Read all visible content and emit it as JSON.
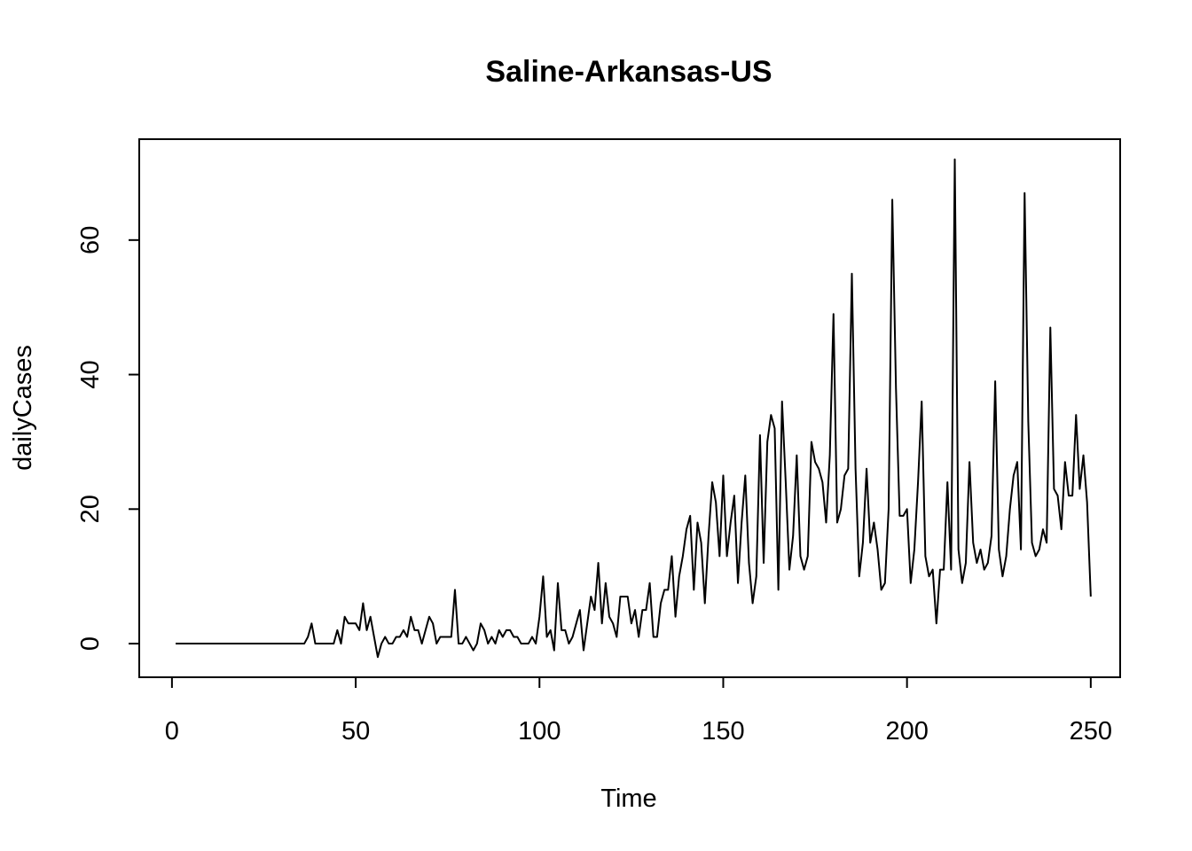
{
  "chart_data": {
    "type": "line",
    "title": "Saline-Arkansas-US",
    "xlabel": "Time",
    "ylabel": "dailyCases",
    "xlim": [
      -8.9,
      258
    ],
    "ylim": [
      -5,
      75
    ],
    "x_ticks": [
      0,
      50,
      100,
      150,
      200,
      250
    ],
    "y_ticks": [
      0,
      20,
      40,
      60
    ],
    "grid": false,
    "legend": "none",
    "x_start": 1,
    "series": [
      {
        "values": [
          0,
          0,
          0,
          0,
          0,
          0,
          0,
          0,
          0,
          0,
          0,
          0,
          0,
          0,
          0,
          0,
          0,
          0,
          0,
          0,
          0,
          0,
          0,
          0,
          0,
          0,
          0,
          0,
          0,
          0,
          0,
          0,
          0,
          0,
          0,
          0,
          1,
          3,
          0,
          0,
          0,
          0,
          0,
          0,
          2,
          0,
          4,
          3,
          3,
          3,
          2,
          6,
          2,
          4,
          1,
          -2,
          0,
          1,
          0,
          0,
          1,
          1,
          2,
          1,
          4,
          2,
          2,
          0,
          2,
          4,
          3,
          0,
          1,
          1,
          1,
          1,
          8,
          0,
          0,
          1,
          0,
          -1,
          0,
          3,
          2,
          0,
          1,
          0,
          2,
          1,
          2,
          2,
          1,
          1,
          0,
          0,
          0,
          1,
          0,
          4,
          10,
          1,
          2,
          -1,
          9,
          2,
          2,
          0,
          1,
          3,
          5,
          -1,
          3,
          7,
          5,
          12,
          3,
          9,
          4,
          3,
          1,
          7,
          7,
          7,
          3,
          5,
          1,
          5,
          5,
          9,
          1,
          1,
          6,
          8,
          8,
          13,
          4,
          10,
          13,
          17,
          19,
          8,
          18,
          15,
          6,
          16,
          24,
          21,
          13,
          25,
          13,
          18,
          22,
          9,
          18,
          25,
          12,
          6,
          10,
          31,
          12,
          30,
          34,
          32,
          8,
          36,
          24,
          11,
          16,
          28,
          13,
          11,
          13,
          30,
          27,
          26,
          24,
          18,
          28,
          49,
          18,
          20,
          25,
          26,
          55,
          26,
          10,
          15,
          26,
          15,
          18,
          14,
          8,
          9,
          20,
          66,
          38,
          19,
          19,
          20,
          9,
          14,
          24,
          36,
          13,
          10,
          11,
          3,
          11,
          11,
          24,
          11,
          72,
          14,
          9,
          12,
          27,
          15,
          12,
          14,
          11,
          12,
          16,
          39,
          14,
          10,
          13,
          20,
          25,
          27,
          14,
          67,
          33,
          15,
          13,
          14,
          17,
          15,
          47,
          23,
          22,
          17,
          27,
          22,
          22,
          34,
          23,
          28,
          21,
          7
        ]
      }
    ]
  }
}
